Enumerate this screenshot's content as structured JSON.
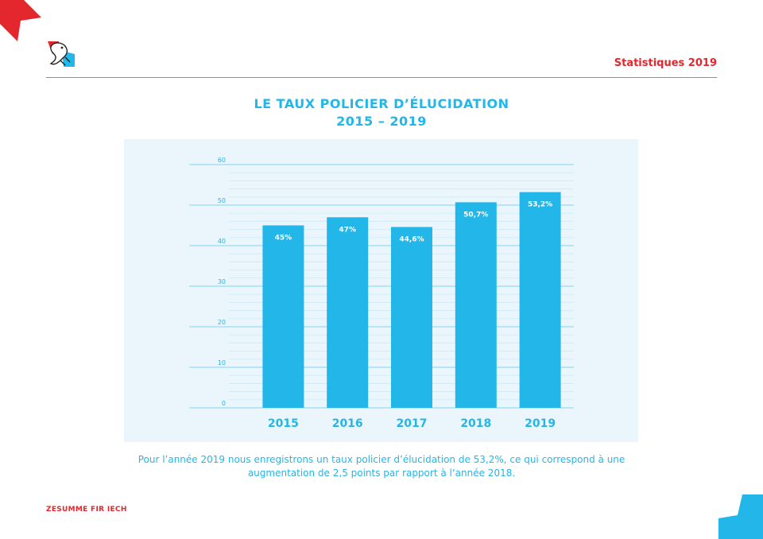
{
  "header": {
    "title": "Statistiques 2019"
  },
  "footer": {
    "text": "ZESUMME FIR IECH"
  },
  "chart_title": {
    "line1": "LE TAUX POLICIER D’ÉLUCIDATION",
    "line2": "2015 – 2019"
  },
  "caption": "Pour l’année 2019 nous enregistrons un taux policier d’élucidation de 53,2%, ce qui correspond à une augmentation de 2,5 points par rapport à l’année 2018.",
  "colors": {
    "accent": "#23b6e9",
    "brand_red": "#e4262d",
    "panel": "#eaf6fc"
  },
  "chart_data": {
    "type": "bar",
    "title": "LE TAUX POLICIER D’ÉLUCIDATION 2015 – 2019",
    "categories": [
      "2015",
      "2016",
      "2017",
      "2018",
      "2019"
    ],
    "values": [
      45,
      47,
      44.6,
      50.7,
      53.2
    ],
    "data_labels": [
      "45%",
      "47%",
      "44,6%",
      "50,7%",
      "53,2%"
    ],
    "ylim": [
      0,
      60
    ],
    "yticks": [
      0,
      10,
      20,
      30,
      40,
      50,
      60
    ],
    "grid": true
  }
}
